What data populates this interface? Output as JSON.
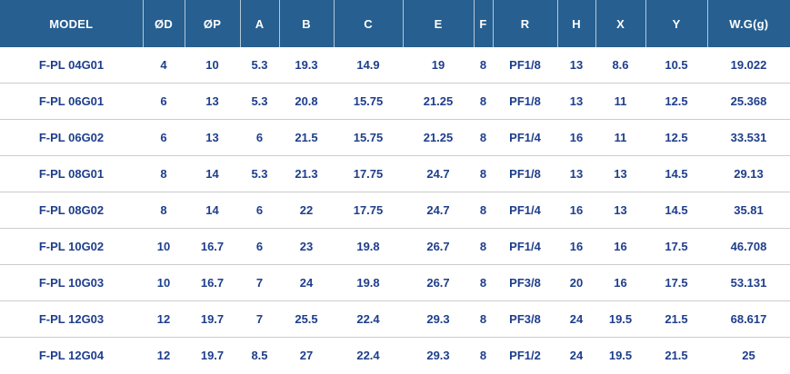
{
  "colors": {
    "header_bg": "#265f90",
    "header_text": "#ffffff",
    "data_text": "#1e3e8c",
    "row_line": "#cccccc"
  },
  "table": {
    "columns": [
      {
        "key": "model",
        "label": "MODEL"
      },
      {
        "key": "od",
        "label": "ØD"
      },
      {
        "key": "op",
        "label": "ØP"
      },
      {
        "key": "a",
        "label": "A"
      },
      {
        "key": "b",
        "label": "B"
      },
      {
        "key": "c",
        "label": "C"
      },
      {
        "key": "e",
        "label": "E"
      },
      {
        "key": "f",
        "label": "F"
      },
      {
        "key": "r",
        "label": "R"
      },
      {
        "key": "h",
        "label": "H"
      },
      {
        "key": "x",
        "label": "X"
      },
      {
        "key": "y",
        "label": "Y"
      },
      {
        "key": "wg",
        "label": "W.G(g)"
      }
    ],
    "rows": [
      [
        "F-PL 04G01",
        "4",
        "10",
        "5.3",
        "19.3",
        "14.9",
        "19",
        "8",
        "PF1/8",
        "13",
        "8.6",
        "10.5",
        "19.022"
      ],
      [
        "F-PL 06G01",
        "6",
        "13",
        "5.3",
        "20.8",
        "15.75",
        "21.25",
        "8",
        "PF1/8",
        "13",
        "11",
        "12.5",
        "25.368"
      ],
      [
        "F-PL 06G02",
        "6",
        "13",
        "6",
        "21.5",
        "15.75",
        "21.25",
        "8",
        "PF1/4",
        "16",
        "11",
        "12.5",
        "33.531"
      ],
      [
        "F-PL 08G01",
        "8",
        "14",
        "5.3",
        "21.3",
        "17.75",
        "24.7",
        "8",
        "PF1/8",
        "13",
        "13",
        "14.5",
        "29.13"
      ],
      [
        "F-PL 08G02",
        "8",
        "14",
        "6",
        "22",
        "17.75",
        "24.7",
        "8",
        "PF1/4",
        "16",
        "13",
        "14.5",
        "35.81"
      ],
      [
        "F-PL 10G02",
        "10",
        "16.7",
        "6",
        "23",
        "19.8",
        "26.7",
        "8",
        "PF1/4",
        "16",
        "16",
        "17.5",
        "46.708"
      ],
      [
        "F-PL 10G03",
        "10",
        "16.7",
        "7",
        "24",
        "19.8",
        "26.7",
        "8",
        "PF3/8",
        "20",
        "16",
        "17.5",
        "53.131"
      ],
      [
        "F-PL 12G03",
        "12",
        "19.7",
        "7",
        "25.5",
        "22.4",
        "29.3",
        "8",
        "PF3/8",
        "24",
        "19.5",
        "21.5",
        "68.617"
      ],
      [
        "F-PL 12G04",
        "12",
        "19.7",
        "8.5",
        "27",
        "22.4",
        "29.3",
        "8",
        "PF1/2",
        "24",
        "19.5",
        "21.5",
        "25"
      ]
    ]
  }
}
